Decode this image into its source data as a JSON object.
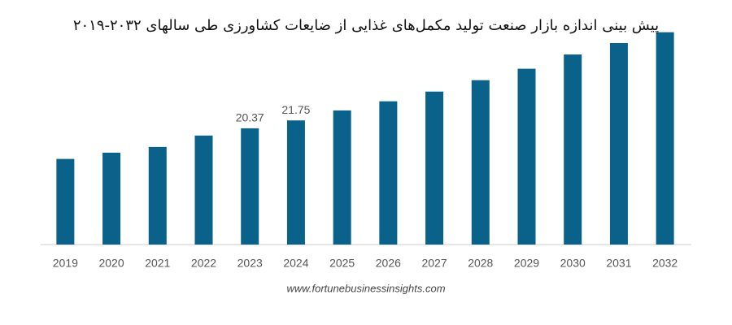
{
  "chart_data": {
    "type": "bar",
    "title": "پیش بینی اندازه بازار صنعت تولید مکمل‌های غذایی از ضایعات کشاورزی طی سالهای ۲۰۳۲-۲۰۱۹",
    "source": "www.fortunebusinessinsights.com",
    "categories": [
      "2019",
      "2020",
      "2021",
      "2022",
      "2023",
      "2024",
      "2025",
      "2026",
      "2027",
      "2028",
      "2029",
      "2030",
      "2031",
      "2032"
    ],
    "values": [
      15.0,
      16.1,
      17.1,
      19.1,
      20.37,
      21.75,
      23.5,
      25.1,
      26.8,
      28.8,
      30.8,
      33.3,
      35.3,
      37.2
    ],
    "value_labels": [
      null,
      null,
      null,
      null,
      "20.37",
      "21.75",
      null,
      null,
      null,
      null,
      null,
      null,
      null,
      null
    ],
    "color": "#0a6189",
    "ylim": [
      0,
      40
    ]
  }
}
